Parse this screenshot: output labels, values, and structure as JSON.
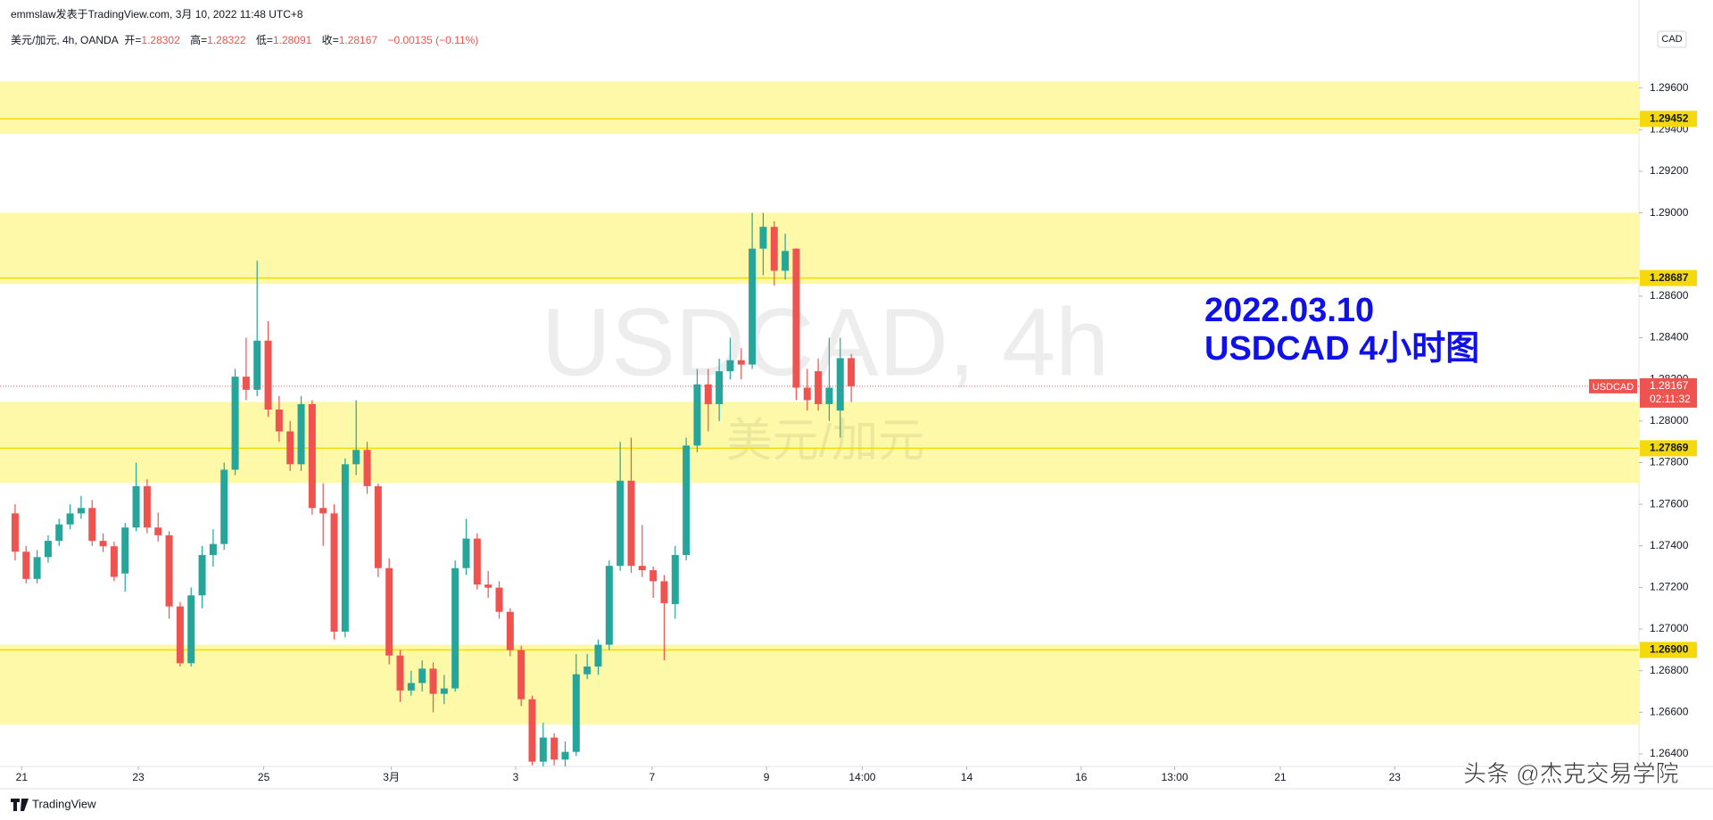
{
  "header": {
    "attribution": "emmslaw发表于TradingView.com, 3月 10, 2022 11:48 UTC+8",
    "symbol": "美元/加元, 4h, OANDA",
    "ohlc": [
      {
        "label": "开",
        "value": "1.28302"
      },
      {
        "label": "高",
        "value": "1.28322"
      },
      {
        "label": "低",
        "value": "1.28091"
      },
      {
        "label": "收",
        "value": "1.28167"
      }
    ],
    "change": "−0.00135 (−0.11%)"
  },
  "chart_data": {
    "type": "candlestick",
    "watermark": "USDCAD, 4h",
    "watermark_sub": "美元/加元",
    "annotation": [
      "2022.03.10",
      "USDCAD 4小时图"
    ],
    "currency": "CAD",
    "up_color": "#26a69a",
    "down_color": "#ef5350",
    "grid": false,
    "x": [
      0,
      1,
      2,
      3,
      4,
      5,
      6,
      7,
      8,
      9,
      10,
      11,
      12,
      13,
      14,
      15,
      16,
      17,
      18,
      19,
      20,
      21,
      22,
      23,
      24,
      25,
      26,
      27,
      28,
      29,
      30,
      31,
      32,
      33,
      34,
      35,
      36,
      37,
      38,
      39,
      40,
      41,
      42,
      43,
      44,
      45,
      46,
      47,
      48,
      49,
      50,
      51,
      52,
      53,
      54,
      55,
      56,
      57,
      58,
      59,
      60,
      61,
      62,
      63,
      64,
      65,
      66,
      67,
      68,
      69,
      70,
      71,
      72,
      73,
      74,
      75,
      76
    ],
    "open": [
      1.27556,
      1.27372,
      1.27241,
      1.27346,
      1.27424,
      1.27503,
      1.27556,
      1.27582,
      1.27424,
      1.27398,
      1.27267,
      1.27488,
      1.27687,
      1.27488,
      1.27451,
      1.27109,
      1.26836,
      1.27162,
      1.27356,
      1.27409,
      1.27766,
      1.28213,
      1.2815,
      1.28386,
      1.28055,
      1.2795,
      1.27792,
      1.28081,
      1.27582,
      1.27556,
      1.26988,
      1.27792,
      1.27861,
      1.27687,
      1.27293,
      1.26873,
      1.26705,
      1.26741,
      1.2681,
      1.26689,
      1.26715,
      1.27293,
      1.27435,
      1.27214,
      1.27199,
      1.27083,
      1.26899,
      1.26663,
      1.26363,
      1.26479,
      1.26373,
      1.2641,
      1.26783,
      1.2682,
      1.26925,
      1.27304,
      1.27713,
      1.27304,
      1.27283,
      1.2723,
      1.2712,
      1.27356,
      1.27882,
      1.28176,
      1.28081,
      1.28239,
      1.28292,
      1.28271,
      1.28828,
      1.28933,
      1.28722,
      1.28828,
      1.2816,
      1.28239,
      1.28081,
      1.2805,
      1.28302
    ],
    "high": [
      1.276,
      1.274,
      1.2738,
      1.2745,
      1.2753,
      1.276,
      1.2764,
      1.2762,
      1.2746,
      1.2742,
      1.2751,
      1.278,
      1.2772,
      1.2756,
      1.2747,
      1.2713,
      1.272,
      1.274,
      1.2748,
      1.278,
      1.2825,
      1.284,
      1.2877,
      1.2848,
      1.2812,
      1.28,
      1.2812,
      1.281,
      1.277,
      1.276,
      1.2782,
      1.281,
      1.279,
      1.277,
      1.2734,
      1.269,
      1.268,
      1.2685,
      1.2684,
      1.2678,
      1.2733,
      1.2753,
      1.2746,
      1.2728,
      1.2723,
      1.271,
      1.2692,
      1.2668,
      1.2655,
      1.265,
      1.2646,
      1.2688,
      1.2688,
      1.2695,
      1.2733,
      1.279,
      1.2792,
      1.275,
      1.273,
      1.2726,
      1.274,
      1.2792,
      1.2825,
      1.2825,
      1.283,
      1.284,
      1.2835,
      1.29,
      1.29,
      1.2896,
      1.289,
      1.2883,
      1.2825,
      1.283,
      1.284,
      1.284,
      1.28322
    ],
    "low": [
      1.2733,
      1.2722,
      1.2722,
      1.2732,
      1.274,
      1.2748,
      1.2753,
      1.274,
      1.2737,
      1.2723,
      1.2718,
      1.2747,
      1.2746,
      1.2742,
      1.2705,
      1.2682,
      1.2682,
      1.271,
      1.273,
      1.2738,
      1.2774,
      1.281,
      1.2812,
      1.2802,
      1.279,
      1.2776,
      1.2776,
      1.2755,
      1.274,
      1.2695,
      1.2696,
      1.2774,
      1.2765,
      1.2725,
      1.2683,
      1.2665,
      1.2668,
      1.267,
      1.266,
      1.2664,
      1.267,
      1.2726,
      1.2719,
      1.2715,
      1.2705,
      1.2687,
      1.2663,
      1.26345,
      1.2634,
      1.26345,
      1.2634,
      1.2639,
      1.2676,
      1.2678,
      1.269,
      1.2728,
      1.2727,
      1.2725,
      1.2715,
      1.2685,
      1.2705,
      1.2733,
      1.2785,
      1.2795,
      1.28,
      1.282,
      1.282,
      1.2825,
      1.287,
      1.2865,
      1.2868,
      1.281,
      1.2805,
      1.2805,
      1.28,
      1.2792,
      1.28091
    ],
    "close": [
      1.27372,
      1.27241,
      1.27346,
      1.27424,
      1.27503,
      1.27556,
      1.27582,
      1.27424,
      1.27398,
      1.27251,
      1.27488,
      1.27687,
      1.27488,
      1.27451,
      1.27109,
      1.26836,
      1.27162,
      1.27356,
      1.27409,
      1.27766,
      1.28213,
      1.2815,
      1.28386,
      1.28055,
      1.2795,
      1.27792,
      1.28081,
      1.27582,
      1.27556,
      1.26988,
      1.27792,
      1.27861,
      1.27687,
      1.27293,
      1.26873,
      1.26705,
      1.26741,
      1.2681,
      1.26689,
      1.26715,
      1.27293,
      1.27435,
      1.27214,
      1.27199,
      1.27083,
      1.26899,
      1.26663,
      1.26363,
      1.26479,
      1.26373,
      1.2641,
      1.26783,
      1.2682,
      1.26925,
      1.27304,
      1.27713,
      1.27304,
      1.27283,
      1.2723,
      1.27125,
      1.27356,
      1.27882,
      1.28176,
      1.28081,
      1.28239,
      1.28292,
      1.28271,
      1.28828,
      1.28933,
      1.28722,
      1.28817,
      1.2816,
      1.281,
      1.28081,
      1.2816,
      1.28302,
      1.28167
    ],
    "xlim": [
      -0.4,
      147.6
    ],
    "xticks": [
      {
        "value": 0.6,
        "label": "21"
      },
      {
        "value": 11.2,
        "label": "23"
      },
      {
        "value": 22.6,
        "label": "25"
      },
      {
        "value": 34.2,
        "label": "3月"
      },
      {
        "value": 45.5,
        "label": "3"
      },
      {
        "value": 57.9,
        "label": "7"
      },
      {
        "value": 68.3,
        "label": "9"
      },
      {
        "value": 77,
        "label": "14:00"
      },
      {
        "value": 86.5,
        "label": "14"
      },
      {
        "value": 96.9,
        "label": "16"
      },
      {
        "value": 105.4,
        "label": "13:00"
      },
      {
        "value": 115,
        "label": "21"
      },
      {
        "value": 125.4,
        "label": "23"
      }
    ],
    "ylim": [
      1.2634,
      1.2992
    ],
    "yticks": [
      {
        "value": 1.296,
        "label": "1.29600"
      },
      {
        "value": 1.294,
        "label": "1.29400"
      },
      {
        "value": 1.292,
        "label": "1.29200"
      },
      {
        "value": 1.29,
        "label": "1.29000"
      },
      {
        "value": 1.286,
        "label": "1.28600"
      },
      {
        "value": 1.284,
        "label": "1.28400"
      },
      {
        "value": 1.282,
        "label": "1.28200"
      },
      {
        "value": 1.28,
        "label": "1.28000"
      },
      {
        "value": 1.278,
        "label": "1.27800"
      },
      {
        "value": 1.276,
        "label": "1.27600"
      },
      {
        "value": 1.274,
        "label": "1.27400"
      },
      {
        "value": 1.272,
        "label": "1.27200"
      },
      {
        "value": 1.27,
        "label": "1.27000"
      },
      {
        "value": 1.268,
        "label": "1.26800"
      },
      {
        "value": 1.266,
        "label": "1.26600"
      },
      {
        "value": 1.264,
        "label": "1.26400"
      }
    ],
    "zones": [
      [
        1.29632,
        1.29379
      ],
      [
        1.29001,
        1.28659
      ],
      [
        1.28092,
        1.27703
      ],
      [
        1.26925,
        1.26542
      ]
    ],
    "zone_color": "#fdf9a8",
    "level_color": "#f5d90a",
    "levels": [
      {
        "value": 1.29452,
        "label": "1.29452"
      },
      {
        "value": 1.28687,
        "label": "1.28687"
      },
      {
        "value": 1.27869,
        "label": "1.27869"
      },
      {
        "value": 1.269,
        "label": "1.26900"
      }
    ],
    "last_price": {
      "value": 1.28167,
      "label": "1.28167"
    },
    "symbol_tag": "USDCAD",
    "countdown": "02:11:32"
  },
  "footer": {
    "brand": "TradingView",
    "watermark": "头条 @杰克交易学院"
  }
}
